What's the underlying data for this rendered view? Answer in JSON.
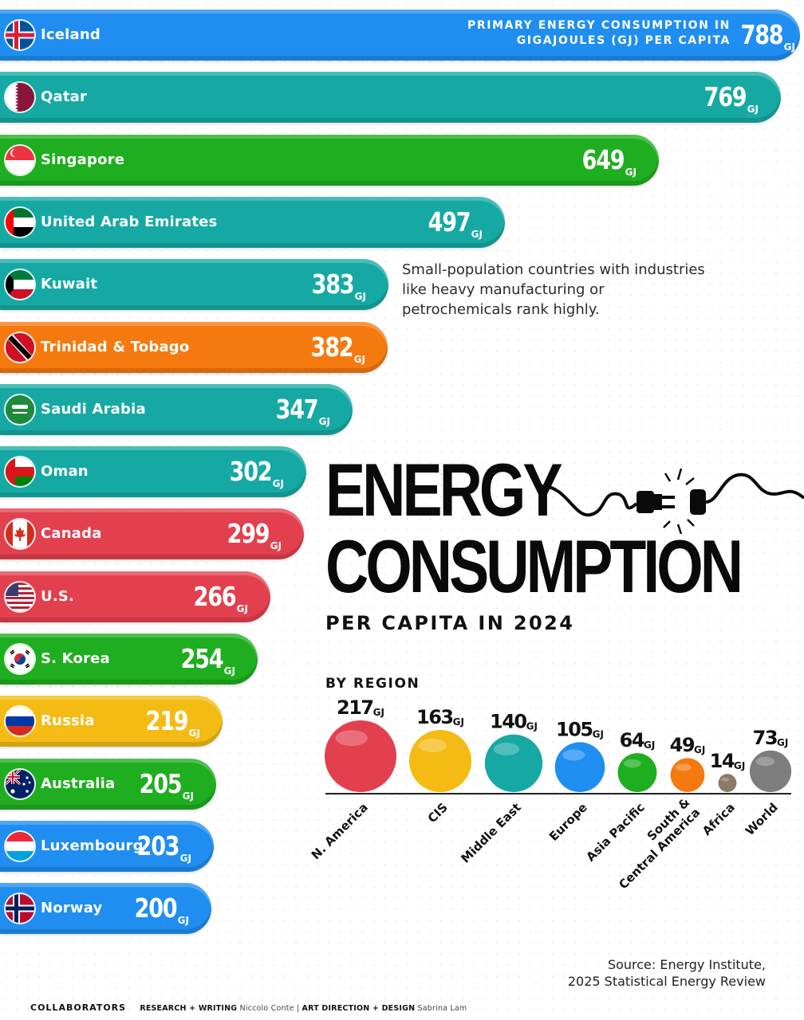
{
  "chart_data": [
    {
      "type": "bar",
      "orientation": "horizontal",
      "title": "ENERGY CONSUMPTION",
      "subtitle": "PER CAPITA IN 2024",
      "metric_label": "PRIMARY ENERGY CONSUMPTION IN GIGAJOULES (GJ) PER CAPITA",
      "unit": "GJ",
      "categories": [
        "Iceland",
        "Qatar",
        "Singapore",
        "United Arab Emirates",
        "Kuwait",
        "Trinidad & Tobago",
        "Saudi Arabia",
        "Oman",
        "Canada",
        "U.S.",
        "S. Korea",
        "Russia",
        "Australia",
        "Luxembourg",
        "Norway"
      ],
      "values": [
        788,
        769,
        649,
        497,
        383,
        382,
        347,
        302,
        299,
        266,
        254,
        219,
        205,
        203,
        200
      ],
      "colors": [
        "#1f8ef0",
        "#16a9a4",
        "#1fae1f",
        "#16a9a4",
        "#16a9a4",
        "#f47a10",
        "#16a9a4",
        "#16a9a4",
        "#e2404e",
        "#e2404e",
        "#1fae1f",
        "#f3bb14",
        "#1fae1f",
        "#1f8ef0",
        "#1f8ef0"
      ],
      "flags": [
        "iceland-flag-icon",
        "qatar-flag-icon",
        "singapore-flag-icon",
        "uae-flag-icon",
        "kuwait-flag-icon",
        "trinidad-flag-icon",
        "saudi-flag-icon",
        "oman-flag-icon",
        "canada-flag-icon",
        "us-flag-icon",
        "korea-flag-icon",
        "russia-flag-icon",
        "australia-flag-icon",
        "luxembourg-flag-icon",
        "norway-flag-icon"
      ],
      "annotation": "Small-population countries with industries like heavy manufacturing or petrochemicals rank highly."
    },
    {
      "type": "bubble",
      "title": "BY REGION",
      "unit": "GJ",
      "categories": [
        "N. America",
        "CIS",
        "Middle East",
        "Europe",
        "Asia Pacific",
        "South & Central America",
        "Africa",
        "World"
      ],
      "values": [
        217,
        163,
        140,
        105,
        64,
        49,
        14,
        73
      ],
      "colors": [
        "#e2404e",
        "#f3bb14",
        "#16a9a4",
        "#1f8ef0",
        "#1fae1f",
        "#f47a10",
        "#8a7a66",
        "#7d7d7d"
      ]
    }
  ],
  "source": {
    "line1": "Source: Energy Institute,",
    "line2": "2025 Statistical Energy Review"
  },
  "footer": {
    "brand": "COLLABORATORS",
    "research_label": "RESEARCH + WRITING",
    "research_name": "Niccolo Conte",
    "sep": "|",
    "design_label": "ART DIRECTION + DESIGN",
    "design_name": "Sabrina Lam"
  }
}
